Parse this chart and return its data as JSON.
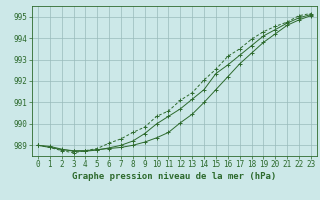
{
  "xlabel": "Graphe pression niveau de la mer (hPa)",
  "x": [
    0,
    1,
    2,
    3,
    4,
    5,
    6,
    7,
    8,
    9,
    10,
    11,
    12,
    13,
    14,
    15,
    16,
    17,
    18,
    19,
    20,
    21,
    22,
    23
  ],
  "line1": [
    989.0,
    988.9,
    988.8,
    988.75,
    988.75,
    988.8,
    988.85,
    988.9,
    989.0,
    989.15,
    989.35,
    989.6,
    990.05,
    990.45,
    991.0,
    991.6,
    992.2,
    992.8,
    993.3,
    993.8,
    994.2,
    994.6,
    994.85,
    995.05
  ],
  "line2": [
    989.0,
    988.95,
    988.82,
    988.72,
    988.72,
    988.78,
    988.88,
    989.0,
    989.2,
    989.55,
    990.0,
    990.35,
    990.7,
    991.15,
    991.6,
    992.35,
    992.75,
    993.2,
    993.65,
    994.1,
    994.4,
    994.7,
    994.95,
    995.1
  ],
  "line3": [
    989.0,
    988.9,
    988.75,
    988.65,
    988.75,
    988.85,
    989.1,
    989.3,
    989.6,
    989.85,
    990.35,
    990.6,
    991.1,
    991.45,
    992.05,
    992.55,
    993.15,
    993.5,
    993.95,
    994.3,
    994.55,
    994.75,
    995.05,
    995.15
  ],
  "line_color": "#2d6a2d",
  "bg_color": "#cce8e8",
  "grid_color": "#99bbbb",
  "ylim": [
    988.5,
    995.5
  ],
  "yticks": [
    989,
    990,
    991,
    992,
    993,
    994,
    995
  ],
  "xlim": [
    -0.5,
    23.5
  ],
  "xlabel_fontsize": 6.5,
  "tick_fontsize": 5.5
}
